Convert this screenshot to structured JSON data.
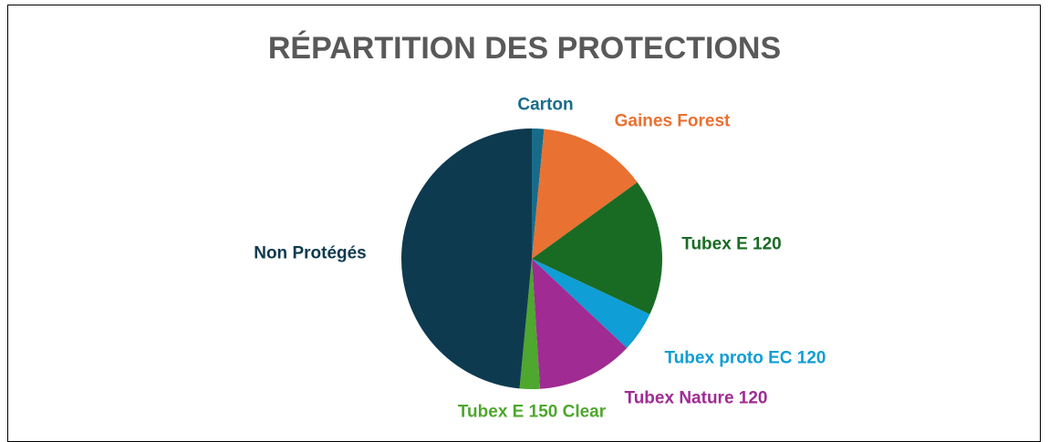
{
  "chart_data": {
    "type": "pie",
    "title": "RÉPARTITION DES PROTECTIONS",
    "categories": [
      "Carton",
      "Gaines Forest",
      "Tubex E 120",
      "Tubex proto EC 120",
      "Tubex Nature 120",
      "Tubex E 150 Clear",
      "Non Protégés"
    ],
    "values": [
      1.5,
      13.5,
      17,
      5,
      12,
      2.5,
      48.5
    ],
    "colors": [
      "#196b8a",
      "#e97132",
      "#196b24",
      "#0f9ed5",
      "#a02b93",
      "#4ea72e",
      "#0e3a4f"
    ]
  }
}
